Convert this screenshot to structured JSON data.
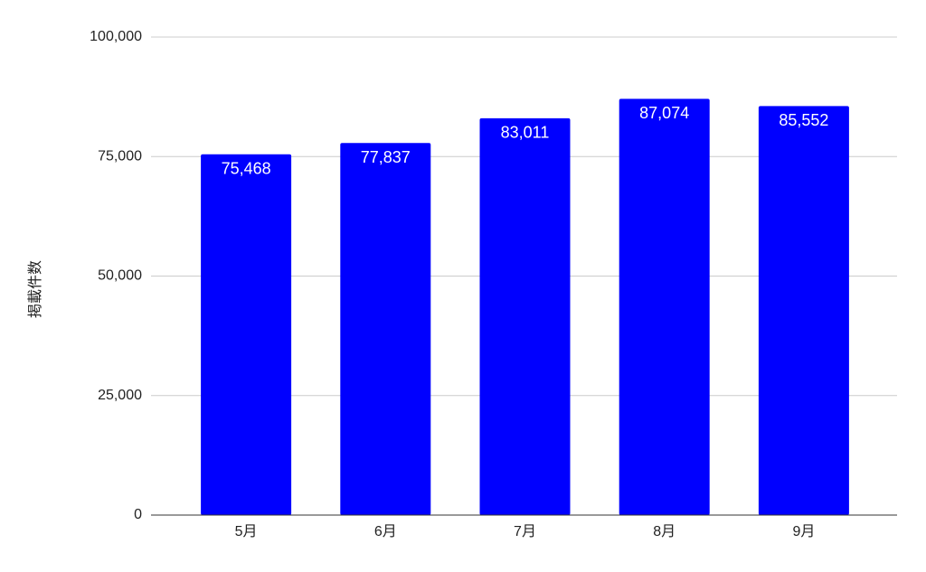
{
  "chart_data": {
    "type": "bar",
    "y_label": "掲載件数",
    "categories": [
      "5月",
      "6月",
      "7月",
      "8月",
      "9月"
    ],
    "values": [
      75468,
      77837,
      83011,
      87074,
      85552
    ],
    "value_labels": [
      "75,468",
      "77,837",
      "83,011",
      "87,074",
      "85,552"
    ],
    "color": "#0000ff",
    "ylim": [
      0,
      100000
    ],
    "yticks": [
      0,
      {
        "value": 25000,
        "label": "25,000"
      },
      {
        "value": 50000,
        "label": "50,000"
      },
      {
        "value": 75000,
        "label": "75,000"
      },
      {
        "value": 100000,
        "label": "100,000"
      }
    ],
    "grid": true
  }
}
